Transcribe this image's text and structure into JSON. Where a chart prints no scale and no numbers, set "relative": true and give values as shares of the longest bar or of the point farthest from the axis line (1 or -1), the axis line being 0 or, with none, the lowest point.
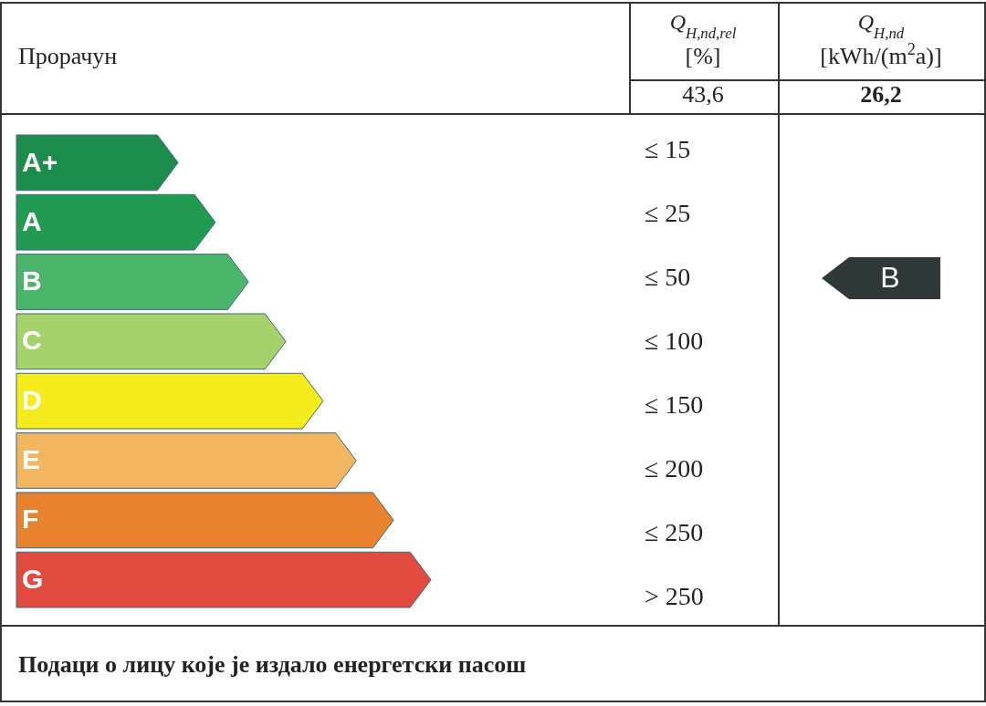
{
  "chart_data": {
    "type": "bar",
    "orientation": "horizontal",
    "relative": true,
    "categories": [
      "A+",
      "A",
      "B",
      "C",
      "D",
      "E",
      "F",
      "G"
    ],
    "values": [
      0.39,
      0.48,
      0.56,
      0.65,
      0.74,
      0.82,
      0.91,
      1.0
    ],
    "colors": [
      "#1b8c4c",
      "#239a52",
      "#4cb56c",
      "#a6d26c",
      "#f4ec1c",
      "#f2b661",
      "#e9822f",
      "#e04b3e"
    ],
    "annotations": [
      "Прорачун",
      "Q$_{H,nd,rel}$",
      "[%]",
      "43,6",
      "Q$_{H,nd}$",
      "[kWh/(m$^{2}$a)]",
      "26,2",
      "Подаци о лицу које је издало енергетски пасош",
      "B",
      "≤ 15",
      "≤ 25",
      "≤ 50",
      "≤ 100",
      "≤ 150",
      "≤ 200",
      "≤ 250",
      "> 250"
    ]
  }
}
